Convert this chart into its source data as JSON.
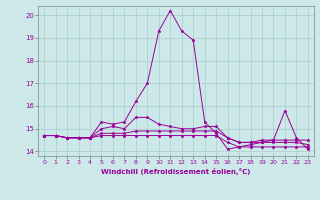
{
  "xlabel": "Windchill (Refroidissement éolien,°C)",
  "bg_color": "#cce8e8",
  "line_color": "#990099",
  "grid_color": "#aacccc",
  "ylim": [
    13.8,
    20.4
  ],
  "xlim": [
    -0.5,
    23.5
  ],
  "yticks": [
    14,
    15,
    16,
    17,
    18,
    19,
    20
  ],
  "xticks": [
    0,
    1,
    2,
    3,
    4,
    5,
    6,
    7,
    8,
    9,
    10,
    11,
    12,
    13,
    14,
    15,
    16,
    17,
    18,
    19,
    20,
    21,
    22,
    23
  ],
  "series": [
    [
      14.7,
      14.7,
      14.6,
      14.6,
      14.6,
      15.3,
      15.2,
      15.3,
      16.2,
      17.0,
      19.3,
      20.2,
      19.3,
      18.9,
      15.3,
      14.8,
      14.1,
      14.2,
      14.3,
      14.4,
      14.5,
      15.8,
      14.6,
      14.1
    ],
    [
      14.7,
      14.7,
      14.6,
      14.6,
      14.6,
      15.0,
      15.1,
      15.0,
      15.5,
      15.5,
      15.2,
      15.1,
      15.0,
      15.0,
      15.1,
      15.1,
      14.6,
      14.4,
      14.4,
      14.5,
      14.5,
      14.5,
      14.5,
      14.5
    ],
    [
      14.7,
      14.7,
      14.6,
      14.6,
      14.6,
      14.8,
      14.8,
      14.8,
      14.9,
      14.9,
      14.9,
      14.9,
      14.9,
      14.9,
      14.9,
      14.9,
      14.6,
      14.4,
      14.4,
      14.4,
      14.4,
      14.4,
      14.4,
      14.3
    ],
    [
      14.7,
      14.7,
      14.6,
      14.6,
      14.6,
      14.7,
      14.7,
      14.7,
      14.7,
      14.7,
      14.7,
      14.7,
      14.7,
      14.7,
      14.7,
      14.7,
      14.4,
      14.2,
      14.2,
      14.2,
      14.2,
      14.2,
      14.2,
      14.2
    ]
  ]
}
